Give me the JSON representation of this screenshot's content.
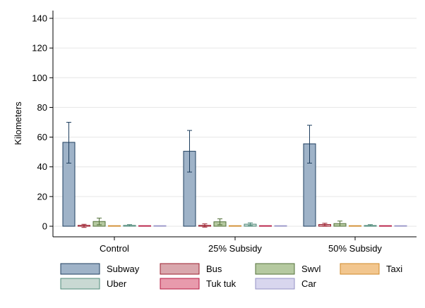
{
  "chart_data": {
    "type": "bar",
    "ylabel": "Kilometers",
    "ylim": [
      0,
      140
    ],
    "yticks": [
      0,
      20,
      40,
      60,
      80,
      100,
      120,
      140
    ],
    "grid": true,
    "legend_position": "bottom",
    "categories": [
      "Control",
      "25% Subsidy",
      "50% Subsidy"
    ],
    "series": [
      {
        "name": "Subway",
        "fill": "#9fb3c8",
        "stroke": "#1f3f5f",
        "values": [
          56.5,
          50.5,
          55.5
        ],
        "err_low": [
          42.5,
          36.5,
          42.5
        ],
        "err_high": [
          70,
          64.5,
          68
        ]
      },
      {
        "name": "Bus",
        "fill": "#d9a7ad",
        "stroke": "#9c1f2e",
        "values": [
          0.6,
          0.6,
          1.2
        ],
        "err_low": [
          -0.8,
          -0.6,
          0.2
        ],
        "err_high": [
          1.3,
          1.6,
          2.0
        ]
      },
      {
        "name": "Swvl",
        "fill": "#b5c9a0",
        "stroke": "#53713a",
        "values": [
          3.2,
          3.0,
          1.8
        ],
        "err_low": [
          1.0,
          1.0,
          0.0
        ],
        "err_high": [
          5.5,
          5.0,
          3.5
        ]
      },
      {
        "name": "Taxi",
        "fill": "#f2c68e",
        "stroke": "#d08a2a",
        "values": [
          0.1,
          0.1,
          0.1
        ],
        "err_low": [
          0.0,
          0.0,
          0.0
        ],
        "err_high": [
          0.2,
          0.2,
          0.2
        ]
      },
      {
        "name": "Uber",
        "fill": "#c9d9d3",
        "stroke": "#4f8a7a",
        "values": [
          0.6,
          1.4,
          0.5
        ],
        "err_low": [
          0.0,
          0.5,
          0.0
        ],
        "err_high": [
          1.1,
          2.3,
          1.1
        ]
      },
      {
        "name": "Tuk tuk",
        "fill": "#e89aac",
        "stroke": "#b5173f",
        "values": [
          0.1,
          0.1,
          0.1
        ],
        "err_low": [
          0.0,
          0.0,
          0.0
        ],
        "err_high": [
          0.2,
          0.2,
          0.2
        ]
      },
      {
        "name": "Car",
        "fill": "#d8d6ee",
        "stroke": "#9591c6",
        "values": [
          0.05,
          0.05,
          0.05
        ],
        "err_low": [
          0.0,
          0.0,
          0.0
        ],
        "err_high": [
          0.1,
          0.1,
          0.1
        ]
      }
    ]
  }
}
